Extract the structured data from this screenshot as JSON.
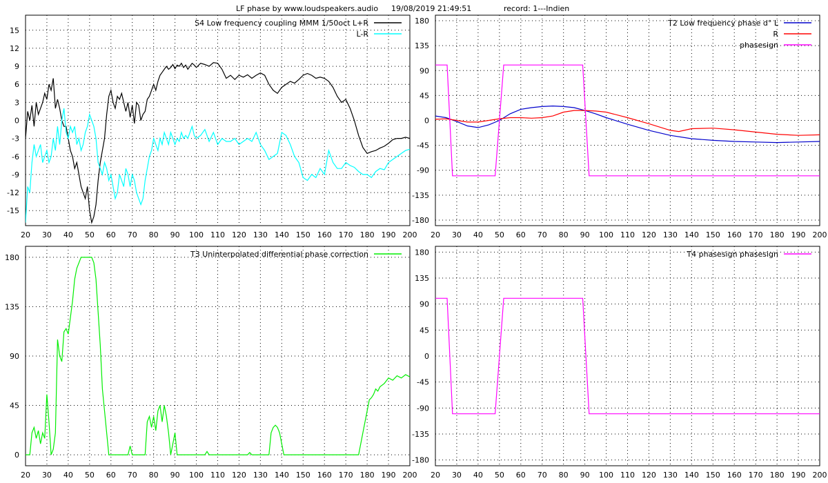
{
  "header": {
    "title": "LF phase by www.loudspeakers.audio",
    "datetime": "19/08/2019 21:49:51",
    "record": "record: 1---Indien"
  },
  "chart_data": [
    {
      "id": "S4",
      "type": "line",
      "title": "S4   Low frequency coupling MMM 1/50oct",
      "xlim": [
        20,
        200
      ],
      "ylim": [
        -17.5,
        17.5
      ],
      "yticks": [
        -15,
        -12,
        -9,
        -6,
        -3,
        0,
        3,
        6,
        9,
        12,
        15
      ],
      "xticks": [
        20,
        30,
        40,
        50,
        60,
        70,
        80,
        90,
        100,
        110,
        120,
        130,
        140,
        150,
        160,
        170,
        180,
        190,
        200
      ],
      "series": [
        {
          "name": "L+R",
          "color": "#000000",
          "x": [
            20,
            21,
            22,
            23,
            24,
            25,
            26,
            27,
            28,
            29,
            30,
            31,
            32,
            33,
            34,
            35,
            36,
            37,
            38,
            39,
            40,
            41,
            42,
            43,
            44,
            45,
            46,
            47,
            48,
            49,
            50,
            51,
            52,
            53,
            54,
            55,
            56,
            57,
            58,
            59,
            60,
            61,
            62,
            63,
            64,
            65,
            66,
            67,
            68,
            69,
            70,
            71,
            72,
            73,
            74,
            75,
            76,
            77,
            78,
            79,
            80,
            81,
            82,
            83,
            84,
            85,
            86,
            87,
            88,
            89,
            90,
            91,
            92,
            93,
            94,
            95,
            96,
            97,
            98,
            99,
            100,
            102,
            104,
            106,
            108,
            110,
            112,
            114,
            116,
            118,
            120,
            122,
            124,
            126,
            128,
            130,
            132,
            134,
            136,
            138,
            140,
            142,
            144,
            146,
            148,
            150,
            152,
            154,
            156,
            158,
            160,
            162,
            164,
            166,
            168,
            170,
            172,
            174,
            176,
            178,
            180,
            182,
            184,
            186,
            188,
            190,
            192,
            194,
            196,
            198,
            200
          ],
          "values": [
            -3,
            1.5,
            0,
            2.5,
            -1,
            3,
            1,
            2,
            3,
            4.5,
            3.5,
            6,
            5,
            7,
            2,
            3.5,
            2,
            0,
            -1,
            -1,
            -3,
            -5,
            -6,
            -8,
            -7,
            -9,
            -11,
            -12,
            -13,
            -11,
            -15,
            -17,
            -16,
            -14,
            -10,
            -7,
            -5,
            -3,
            1,
            4,
            5,
            3,
            2,
            4,
            3.5,
            4.5,
            3,
            1.5,
            3,
            0.5,
            2.5,
            -0.5,
            3,
            2.5,
            0,
            1,
            1.5,
            3.5,
            4,
            5,
            6,
            5,
            6.5,
            7.5,
            8,
            8.5,
            9,
            8.5,
            8.8,
            9.3,
            8.6,
            9.2,
            9.0,
            9.5,
            8.8,
            9.2,
            8.5,
            9.0,
            9.5,
            9.2,
            8.8,
            9.5,
            9.3,
            9.0,
            9.6,
            9.5,
            8.5,
            7.0,
            7.5,
            6.8,
            7.5,
            7.2,
            7.6,
            7.0,
            7.5,
            7.9,
            7.5,
            6.0,
            5.0,
            4.5,
            5.5,
            6.0,
            6.5,
            6.2,
            6.8,
            7.5,
            7.8,
            7.5,
            7.0,
            7.2,
            7.0,
            6.5,
            5.5,
            4.0,
            3.0,
            3.5,
            2.0,
            0,
            -2.5,
            -4.5,
            -5.5,
            -5.2,
            -5.0,
            -4.6,
            -4.3,
            -3.8,
            -3.2,
            -3.0,
            -3.0,
            -2.8,
            -3.0
          ]
        },
        {
          "name": "L-R",
          "color": "#00ffff",
          "x": [
            20,
            21,
            22,
            23,
            24,
            25,
            26,
            27,
            28,
            29,
            30,
            31,
            32,
            33,
            34,
            35,
            36,
            37,
            38,
            39,
            40,
            41,
            42,
            43,
            44,
            45,
            46,
            47,
            48,
            49,
            50,
            51,
            52,
            53,
            54,
            55,
            56,
            57,
            58,
            59,
            60,
            61,
            62,
            63,
            64,
            65,
            66,
            67,
            68,
            69,
            70,
            71,
            72,
            73,
            74,
            75,
            76,
            77,
            78,
            79,
            80,
            81,
            82,
            83,
            84,
            85,
            86,
            87,
            88,
            89,
            90,
            91,
            92,
            93,
            94,
            95,
            96,
            97,
            98,
            99,
            100,
            102,
            104,
            106,
            108,
            110,
            112,
            114,
            116,
            118,
            120,
            122,
            124,
            126,
            128,
            130,
            132,
            134,
            136,
            138,
            140,
            142,
            144,
            146,
            148,
            150,
            152,
            154,
            156,
            158,
            160,
            162,
            164,
            166,
            168,
            170,
            172,
            174,
            176,
            178,
            180,
            182,
            184,
            186,
            188,
            190,
            192,
            194,
            196,
            198,
            200
          ],
          "values": [
            -17,
            -11,
            -12,
            -7,
            -4,
            -6,
            -5,
            -4,
            -7,
            -6,
            -5,
            -7,
            -6,
            -3,
            -5,
            -1,
            -4,
            0,
            2,
            -2,
            -3,
            -1,
            -2,
            -1,
            -4,
            -3,
            -5,
            -4,
            -2,
            -1,
            1,
            0,
            -1,
            -3,
            -7,
            -8,
            -9,
            -7,
            -8,
            -10,
            -9,
            -11,
            -13,
            -12,
            -9,
            -10,
            -11,
            -8,
            -9,
            -11,
            -9,
            -10,
            -12,
            -13,
            -14,
            -13,
            -10,
            -8,
            -6,
            -5,
            -3,
            -4,
            -5,
            -3,
            -4,
            -2,
            -3,
            -4,
            -2,
            -3,
            -4,
            -3,
            -3.5,
            -2,
            -3,
            -2.5,
            -3,
            -2,
            -1,
            -2.5,
            -3,
            -2.5,
            -1.5,
            -3.5,
            -2,
            -4,
            -3,
            -3.5,
            -3.5,
            -3,
            -4,
            -3.5,
            -3,
            -3.5,
            -2,
            -4,
            -5,
            -6.5,
            -6,
            -5.5,
            -2,
            -2.5,
            -4,
            -6,
            -7,
            -9.5,
            -10,
            -9,
            -9.5,
            -8,
            -9,
            -5,
            -7,
            -8,
            -8,
            -7,
            -7.5,
            -7.8,
            -8.5,
            -9,
            -9,
            -9.5,
            -8.5,
            -8,
            -8.2,
            -7,
            -6.5,
            -6,
            -5.5,
            -5,
            -4.8
          ]
        }
      ]
    },
    {
      "id": "T2",
      "type": "line",
      "title": "T2   Low frequency phase d°",
      "xlim": [
        20,
        200
      ],
      "ylim": [
        -190,
        190
      ],
      "yticks": [
        -180,
        -135,
        -90,
        -45,
        0,
        45,
        90,
        135,
        180
      ],
      "xticks": [
        20,
        30,
        40,
        50,
        60,
        70,
        80,
        90,
        100,
        110,
        120,
        130,
        140,
        150,
        160,
        170,
        180,
        190,
        200
      ],
      "series": [
        {
          "name": "L",
          "color": "#0000cc",
          "x": [
            20,
            25,
            30,
            35,
            40,
            45,
            50,
            55,
            60,
            65,
            70,
            75,
            80,
            85,
            90,
            95,
            100,
            110,
            120,
            130,
            140,
            150,
            160,
            170,
            180,
            190,
            200
          ],
          "values": [
            8,
            5,
            -2,
            -10,
            -13,
            -8,
            0,
            12,
            20,
            23,
            25,
            26,
            25,
            23,
            18,
            12,
            5,
            -7,
            -18,
            -27,
            -33,
            -36,
            -38,
            -39,
            -40,
            -39,
            -38
          ]
        },
        {
          "name": "R",
          "color": "#ff0000",
          "x": [
            20,
            25,
            30,
            35,
            40,
            45,
            50,
            55,
            60,
            65,
            70,
            75,
            80,
            85,
            90,
            95,
            100,
            110,
            120,
            130,
            134,
            140,
            150,
            160,
            170,
            180,
            190,
            200
          ],
          "values": [
            2,
            3,
            0,
            -3,
            -3,
            0,
            3,
            5,
            5,
            4,
            5,
            8,
            15,
            18,
            18,
            17,
            15,
            5,
            -6,
            -18,
            -20,
            -15,
            -14,
            -17,
            -21,
            -25,
            -27,
            -26
          ]
        },
        {
          "name": "phasesign",
          "color": "#ff00ff",
          "x": [
            20,
            25.5,
            28,
            48,
            52,
            89,
            92,
            200
          ],
          "values": [
            100,
            100,
            -100,
            -100,
            100,
            100,
            -100,
            -100
          ]
        }
      ]
    },
    {
      "id": "T3",
      "type": "line",
      "title": "T3   Uninterpolated differential phase correction",
      "xlim": [
        20,
        200
      ],
      "ylim": [
        -10,
        190
      ],
      "yticks": [
        0,
        45,
        90,
        135,
        180
      ],
      "xticks": [
        20,
        30,
        40,
        50,
        60,
        70,
        80,
        90,
        100,
        110,
        120,
        130,
        140,
        150,
        160,
        170,
        180,
        190,
        200
      ],
      "series": [
        {
          "name": "",
          "color": "#00ee00",
          "x": [
            20,
            22,
            23,
            24,
            25,
            26,
            27,
            28,
            29,
            30,
            31,
            32,
            33,
            34,
            35,
            36,
            37,
            38,
            39,
            40,
            41,
            42,
            43,
            44,
            45,
            46,
            47,
            48,
            49,
            50,
            51,
            52,
            53,
            54,
            55,
            56,
            57,
            58,
            59,
            60,
            61,
            62,
            68,
            69,
            70,
            76,
            77,
            78,
            79,
            80,
            81,
            82,
            83,
            84,
            85,
            86,
            87,
            88,
            89,
            90,
            91,
            92,
            100,
            104,
            105,
            106,
            124,
            125,
            126,
            134,
            135,
            136,
            137,
            138,
            139,
            140,
            141,
            142,
            176,
            177,
            178,
            179,
            180,
            181,
            182,
            183,
            184,
            185,
            186,
            188,
            190,
            192,
            194,
            196,
            198,
            200
          ],
          "values": [
            0,
            0,
            20,
            25,
            15,
            22,
            10,
            20,
            15,
            55,
            30,
            0,
            5,
            20,
            105,
            90,
            85,
            112,
            115,
            110,
            125,
            140,
            160,
            170,
            175,
            180,
            180,
            180,
            180,
            180,
            180,
            175,
            160,
            130,
            100,
            60,
            40,
            20,
            0,
            0,
            0,
            0,
            0,
            8,
            0,
            0,
            30,
            35,
            25,
            35,
            22,
            40,
            45,
            30,
            45,
            35,
            20,
            0,
            10,
            20,
            0,
            0,
            0,
            0,
            3,
            0,
            0,
            2,
            0,
            0,
            20,
            25,
            27,
            25,
            20,
            10,
            0,
            0,
            0,
            10,
            20,
            30,
            40,
            50,
            52,
            55,
            60,
            58,
            62,
            65,
            70,
            68,
            72,
            70,
            73,
            71
          ]
        }
      ]
    },
    {
      "id": "T4",
      "type": "line",
      "title": "T4   phasesign",
      "xlim": [
        20,
        200
      ],
      "ylim": [
        -190,
        190
      ],
      "yticks": [
        -180,
        -135,
        -90,
        -45,
        0,
        45,
        90,
        135,
        180
      ],
      "xticks": [
        20,
        30,
        40,
        50,
        60,
        70,
        80,
        90,
        100,
        110,
        120,
        130,
        140,
        150,
        160,
        170,
        180,
        190,
        200
      ],
      "series": [
        {
          "name": "phasesign",
          "color": "#ff00ff",
          "x": [
            20,
            25.5,
            28,
            48,
            52,
            89,
            92,
            200
          ],
          "values": [
            100,
            100,
            -100,
            -100,
            100,
            100,
            -100,
            -100
          ]
        }
      ]
    }
  ]
}
